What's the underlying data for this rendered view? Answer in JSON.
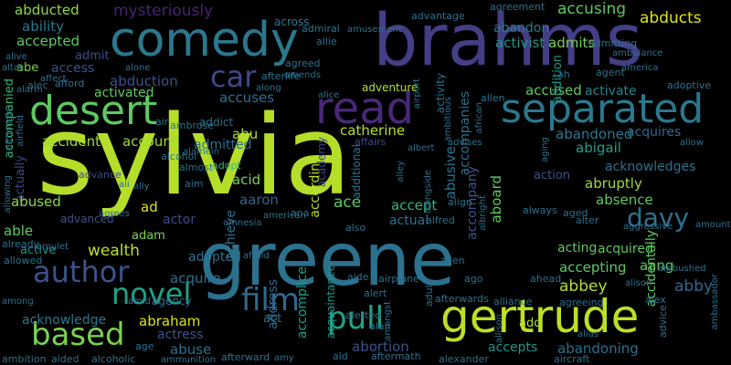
{
  "words": [
    {
      "key": "sylvia",
      "text": "sylvia",
      "color": "#b5de2b"
    },
    {
      "key": "greene",
      "text": "greene",
      "color": "#2c718e"
    },
    {
      "key": "brahms",
      "text": "brahms",
      "color": "#433e85"
    },
    {
      "key": "comedy",
      "text": "comedy",
      "color": "#2a788e"
    },
    {
      "key": "gertrude",
      "text": "gertrude",
      "color": "#bddf26"
    },
    {
      "key": "desert",
      "text": "desert",
      "color": "#5ec962"
    },
    {
      "key": "separated",
      "text": "separated",
      "color": "#2a788e"
    },
    {
      "key": "read",
      "text": "read",
      "color": "#482878"
    },
    {
      "key": "author",
      "text": "author",
      "color": "#3b528b"
    },
    {
      "key": "based",
      "text": "based",
      "color": "#7ad151"
    },
    {
      "key": "novel",
      "text": "novel",
      "color": "#1fa187"
    },
    {
      "key": "pull",
      "text": "pull",
      "color": "#20a486"
    },
    {
      "key": "film",
      "text": "film",
      "color": "#31688e"
    },
    {
      "key": "davy",
      "text": "davy",
      "color": "#2c718e"
    },
    {
      "key": "car",
      "text": "car",
      "color": "#3e4989"
    },
    {
      "key": "abducted",
      "text": "abducted",
      "color": "#8fd744"
    },
    {
      "key": "ability",
      "text": "ability",
      "color": "#2a788e"
    },
    {
      "key": "accepted",
      "text": "accepted",
      "color": "#5ec962"
    },
    {
      "key": "admit",
      "text": "admit",
      "color": "#3e4a89"
    },
    {
      "key": "abe",
      "text": "abe",
      "color": "#7ad151"
    },
    {
      "key": "access",
      "text": "access",
      "color": "#3b528b"
    },
    {
      "key": "mysteriously",
      "text": "mysteriously",
      "color": "#482173"
    },
    {
      "key": "across",
      "text": "across",
      "color": "#2a788e"
    },
    {
      "key": "admiral",
      "text": "admiral",
      "color": "#2a788e"
    },
    {
      "key": "activist",
      "text": "activist",
      "color": "#1f968b"
    },
    {
      "key": "admits",
      "text": "admits",
      "color": "#7ad151"
    },
    {
      "key": "abandon",
      "text": "abandon",
      "color": "#2a788e"
    },
    {
      "key": "accusing",
      "text": "accusing",
      "color": "#5ec962"
    },
    {
      "key": "abducts",
      "text": "abducts",
      "color": "#dde318"
    },
    {
      "key": "abduction",
      "text": "abduction",
      "color": "#3b528b"
    },
    {
      "key": "activated",
      "text": "activated",
      "color": "#5ec962"
    },
    {
      "key": "accuses",
      "text": "accuses",
      "color": "#2c718e"
    },
    {
      "key": "accused",
      "text": "accused",
      "color": "#5ec962"
    },
    {
      "key": "activate",
      "text": "activate",
      "color": "#25838e"
    },
    {
      "key": "accident",
      "text": "accident",
      "color": "#a0da39"
    },
    {
      "key": "account",
      "text": "account",
      "color": "#a0da39"
    },
    {
      "key": "abu",
      "text": "abu",
      "color": "#b5de2b"
    },
    {
      "key": "admitted",
      "text": "admitted",
      "color": "#2c718e"
    },
    {
      "key": "catherine",
      "text": "catherine",
      "color": "#b5de2b"
    },
    {
      "key": "abandoned",
      "text": "abandoned",
      "color": "#2a788e"
    },
    {
      "key": "acquires",
      "text": "acquires",
      "color": "#31688e"
    },
    {
      "key": "abigail",
      "text": "abigail",
      "color": "#1fa187"
    },
    {
      "key": "acknowledges",
      "text": "acknowledges",
      "color": "#2c718e"
    },
    {
      "key": "abruptly",
      "text": "abruptly",
      "color": "#a0da39"
    },
    {
      "key": "absence",
      "text": "absence",
      "color": "#5ec962"
    },
    {
      "key": "action",
      "text": "action",
      "color": "#3b528b"
    },
    {
      "key": "accompanied",
      "text": "accompanied",
      "color": "#35b779"
    },
    {
      "key": "actually",
      "text": "actually",
      "color": "#3e4989"
    },
    {
      "key": "abused",
      "text": "abused",
      "color": "#8fd744"
    },
    {
      "key": "acid",
      "text": "acid",
      "color": "#7ad151"
    },
    {
      "key": "aaron",
      "text": "aaron",
      "color": "#31688e"
    },
    {
      "key": "ace",
      "text": "ace",
      "color": "#5ec962"
    },
    {
      "key": "accept",
      "text": "accept",
      "color": "#35b779"
    },
    {
      "key": "actual",
      "text": "actual",
      "color": "#2c718e"
    },
    {
      "key": "ad",
      "text": "ad",
      "color": "#dde318"
    },
    {
      "key": "actor",
      "text": "actor",
      "color": "#3e4a89"
    },
    {
      "key": "adam",
      "text": "adam",
      "color": "#7ad151"
    },
    {
      "key": "able",
      "text": "able",
      "color": "#5ec962"
    },
    {
      "key": "wealth",
      "text": "wealth",
      "color": "#bddf26"
    },
    {
      "key": "active",
      "text": "active",
      "color": "#1f968b"
    },
    {
      "key": "adopted",
      "text": "adopted",
      "color": "#2c718e"
    },
    {
      "key": "acquire",
      "text": "acquire",
      "color": "#2c718e"
    },
    {
      "key": "address",
      "text": "address",
      "color": "#31688e"
    },
    {
      "key": "accomplice",
      "text": "accomplice",
      "color": "#1fa187"
    },
    {
      "key": "acting",
      "text": "acting",
      "color": "#5ec962"
    },
    {
      "key": "acquired",
      "text": "acquired",
      "color": "#5ec962"
    },
    {
      "key": "accepting",
      "text": "accepting",
      "color": "#5ec962"
    },
    {
      "key": "aang",
      "text": "aang",
      "color": "#5ec962"
    },
    {
      "key": "abbey",
      "text": "abbey",
      "color": "#b5de2b"
    },
    {
      "key": "abby",
      "text": "abby",
      "color": "#31688e"
    },
    {
      "key": "accidentally",
      "text": "accidentally",
      "color": "#5ec962"
    },
    {
      "key": "acknowledge",
      "text": "acknowledge",
      "color": "#2a788e"
    },
    {
      "key": "abraham",
      "text": "abraham",
      "color": "#dde318"
    },
    {
      "key": "actress",
      "text": "actress",
      "color": "#3b528b"
    },
    {
      "key": "abuse",
      "text": "abuse",
      "color": "#2c718e"
    },
    {
      "key": "act",
      "text": "act",
      "color": "#2a788e"
    },
    {
      "key": "abortion",
      "text": "abortion",
      "color": "#3b528b"
    },
    {
      "key": "accepts",
      "text": "accepts",
      "color": "#1f968b"
    },
    {
      "key": "abandoning",
      "text": "abandoning",
      "color": "#2c718e"
    },
    {
      "key": "add",
      "text": "add",
      "color": "#b5de2b"
    },
    {
      "key": "adventure",
      "text": "adventure",
      "color": "#b5de2b"
    },
    {
      "key": "activity",
      "text": "activity",
      "color": "#2c718e"
    },
    {
      "key": "addition",
      "text": "addition",
      "color": "#1f968b"
    },
    {
      "key": "accompanies",
      "text": "accompanies",
      "color": "#2c718e"
    },
    {
      "key": "accompany",
      "text": "accompany",
      "color": "#3b528b"
    },
    {
      "key": "aboard",
      "text": "aboard",
      "color": "#5ec962"
    },
    {
      "key": "abusive",
      "text": "abusive",
      "color": "#2c718e"
    },
    {
      "key": "according",
      "text": "according",
      "color": "#b5de2b"
    },
    {
      "key": "academy",
      "text": "academy",
      "color": "#3e4989"
    },
    {
      "key": "additional",
      "text": "additional",
      "color": "#2c718e"
    },
    {
      "key": "achieve",
      "text": "achieve",
      "color": "#2c718e"
    },
    {
      "key": "acquaintance",
      "text": "acquaintance",
      "color": "#1f968b"
    },
    {
      "key": "adopt",
      "text": "adopt",
      "color": "#35b779"
    },
    {
      "key": "advance",
      "text": "advance",
      "color": "#3e4989"
    },
    {
      "key": "advanced",
      "text": "advanced",
      "color": "#3b528b"
    },
    {
      "key": "advantage",
      "text": "advantage",
      "color": "#2c718e"
    },
    {
      "key": "agreement",
      "text": "agreement",
      "color": "#2c718e"
    },
    {
      "key": "addict",
      "text": "addict",
      "color": "#2c718e"
    },
    {
      "key": "afterlife",
      "text": "afterlife",
      "color": "#2c718e"
    },
    {
      "key": "affairs",
      "text": "affairs",
      "color": "#3e4989"
    },
    {
      "key": "advises",
      "text": "advises",
      "color": "#2c718e"
    },
    {
      "key": "adoptive",
      "text": "adoptive",
      "color": "#2c718e"
    },
    {
      "key": "alone",
      "text": "alone",
      "color": "#2c718e"
    },
    {
      "key": "alarm",
      "text": "alarm",
      "color": "#2c718e"
    },
    {
      "key": "affect",
      "text": "affect",
      "color": "#2c718e"
    },
    {
      "key": "afford",
      "text": "afford",
      "color": "#2c718e"
    },
    {
      "key": "alec",
      "text": "alec",
      "color": "#2c718e"
    },
    {
      "key": "alive",
      "text": "alive",
      "color": "#2c718e"
    },
    {
      "key": "altar",
      "text": "altar",
      "color": "#2c718e"
    },
    {
      "key": "allie",
      "text": "allie",
      "color": "#2c718e"
    },
    {
      "key": "amusement",
      "text": "amusement",
      "color": "#2c718e"
    },
    {
      "key": "admitting",
      "text": "admitting",
      "color": "#2c718e"
    },
    {
      "key": "ambulance",
      "text": "ambulance",
      "color": "#2c718e"
    },
    {
      "key": "america",
      "text": "america",
      "color": "#2c718e"
    },
    {
      "key": "agent",
      "text": "agent",
      "color": "#2c718e"
    },
    {
      "key": "ah",
      "text": "ah",
      "color": "#2c718e"
    },
    {
      "key": "agreed",
      "text": "agreed",
      "color": "#2c718e"
    },
    {
      "key": "amends",
      "text": "amends",
      "color": "#2c718e"
    },
    {
      "key": "allen",
      "text": "allen",
      "color": "#2c718e"
    },
    {
      "key": "along",
      "text": "along",
      "color": "#2c718e"
    },
    {
      "key": "alice",
      "text": "alice",
      "color": "#2c718e"
    },
    {
      "key": "air",
      "text": "air",
      "color": "#2c718e"
    },
    {
      "key": "ambrose",
      "text": "ambrose",
      "color": "#2c718e"
    },
    {
      "key": "alcohol",
      "text": "alcohol",
      "color": "#2c718e"
    },
    {
      "key": "almost",
      "text": "almost",
      "color": "#2c718e"
    },
    {
      "key": "alamein",
      "text": "alamein",
      "color": "#2c718e"
    },
    {
      "key": "ali",
      "text": "ali",
      "color": "#2c718e"
    },
    {
      "key": "ally",
      "text": "ally",
      "color": "#2c718e"
    },
    {
      "key": "aim",
      "text": "aim",
      "color": "#2c718e"
    },
    {
      "key": "american",
      "text": "american",
      "color": "#2c718e"
    },
    {
      "key": "also",
      "text": "also",
      "color": "#2c718e"
    },
    {
      "key": "alfred",
      "text": "alfred",
      "color": "#2c718e"
    },
    {
      "key": "align",
      "text": "align",
      "color": "#2c718e"
    },
    {
      "key": "always",
      "text": "always",
      "color": "#2c718e"
    },
    {
      "key": "allow",
      "text": "allow",
      "color": "#2c718e"
    },
    {
      "key": "aging",
      "text": "aging",
      "color": "#2c718e"
    },
    {
      "key": "already",
      "text": "already",
      "color": "#2c718e"
    },
    {
      "key": "amulet",
      "text": "amulet",
      "color": "#2c718e"
    },
    {
      "key": "agrees",
      "text": "agrees",
      "color": "#2c718e"
    },
    {
      "key": "ana",
      "text": "ana",
      "color": "#2c718e"
    },
    {
      "key": "aged",
      "text": "aged",
      "color": "#2c718e"
    },
    {
      "key": "alter",
      "text": "alter",
      "color": "#2c718e"
    },
    {
      "key": "aggressive",
      "text": "aggressive",
      "color": "#2c718e"
    },
    {
      "key": "amount",
      "text": "amount",
      "color": "#2c718e"
    },
    {
      "key": "allowed",
      "text": "allowed",
      "color": "#2c718e"
    },
    {
      "key": "afraid",
      "text": "afraid",
      "color": "#2c718e"
    },
    {
      "key": "alien",
      "text": "alien",
      "color": "#2c718e"
    },
    {
      "key": "adult",
      "text": "adult",
      "color": "#2c718e"
    },
    {
      "key": "ahead",
      "text": "ahead",
      "color": "#2c718e"
    },
    {
      "key": "ambushed",
      "text": "ambushed",
      "color": "#2c718e"
    },
    {
      "key": "aide",
      "text": "aide",
      "color": "#2c718e"
    },
    {
      "key": "airplane",
      "text": "airplane",
      "color": "#2c718e"
    },
    {
      "key": "ago",
      "text": "ago",
      "color": "#2c718e"
    },
    {
      "key": "alison",
      "text": "alison",
      "color": "#2c718e"
    },
    {
      "key": "alert",
      "text": "alert",
      "color": "#2c718e"
    },
    {
      "key": "agency",
      "text": "agency",
      "color": "#2c718e"
    },
    {
      "key": "amid",
      "text": "amid",
      "color": "#2c718e"
    },
    {
      "key": "alliance",
      "text": "alliance",
      "color": "#2c718e"
    },
    {
      "key": "agreeing",
      "text": "agreeing",
      "color": "#2c718e"
    },
    {
      "key": "alex",
      "text": "alex",
      "color": "#2c718e"
    },
    {
      "key": "afterwards",
      "text": "afterwards",
      "color": "#2c718e"
    },
    {
      "key": "among",
      "text": "among",
      "color": "#2c718e"
    },
    {
      "key": "alerted",
      "text": "alerted",
      "color": "#2c718e"
    },
    {
      "key": "advice",
      "text": "advice",
      "color": "#2c718e"
    },
    {
      "key": "ambassador",
      "text": "ambassador",
      "color": "#2c718e"
    },
    {
      "key": "age",
      "text": "age",
      "color": "#2c718e"
    },
    {
      "key": "amongst",
      "text": "amongst",
      "color": "#2c718e"
    },
    {
      "key": "alias",
      "text": "alias",
      "color": "#2c718e"
    },
    {
      "key": "ambition",
      "text": "ambition",
      "color": "#2c718e"
    },
    {
      "key": "aided",
      "text": "aided",
      "color": "#2c718e"
    },
    {
      "key": "alcoholic",
      "text": "alcoholic",
      "color": "#2c718e"
    },
    {
      "key": "ammunition",
      "text": "ammunition",
      "color": "#2c718e"
    },
    {
      "key": "afterward",
      "text": "afterward",
      "color": "#2c718e"
    },
    {
      "key": "amy",
      "text": "amy",
      "color": "#2c718e"
    },
    {
      "key": "aid",
      "text": "aid",
      "color": "#2c718e"
    },
    {
      "key": "aftermath",
      "text": "aftermath",
      "color": "#2c718e"
    },
    {
      "key": "alexander",
      "text": "alexander",
      "color": "#2c718e"
    },
    {
      "key": "aircraft",
      "text": "aircraft",
      "color": "#2c718e"
    },
    {
      "key": "alan",
      "text": "alan",
      "color": "#2c718e"
    },
    {
      "key": "alley",
      "text": "alley",
      "color": "#2c718e"
    },
    {
      "key": "albert",
      "text": "albert",
      "color": "#2c718e"
    },
    {
      "key": "alongside",
      "text": "alongside",
      "color": "#2c718e"
    },
    {
      "key": "airport",
      "text": "airport",
      "color": "#2c718e"
    },
    {
      "key": "african",
      "text": "african",
      "color": "#2c718e"
    },
    {
      "key": "ambitious",
      "text": "ambitious",
      "color": "#2c718e"
    },
    {
      "key": "albright",
      "text": "albright",
      "color": "#2c718e"
    },
    {
      "key": "allison",
      "text": "allison",
      "color": "#2c718e"
    },
    {
      "key": "airfield",
      "text": "airfield",
      "color": "#2c718e"
    },
    {
      "key": "although",
      "text": "although",
      "color": "#2c718e"
    },
    {
      "key": "allowing",
      "text": "allowing",
      "color": "#2c718e"
    },
    {
      "key": "amnesia",
      "text": "amnesia",
      "color": "#2c718e"
    }
  ]
}
